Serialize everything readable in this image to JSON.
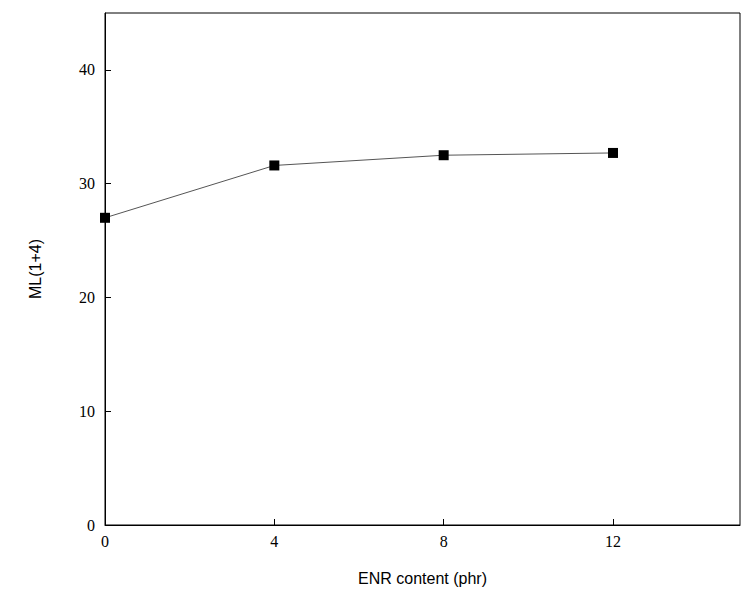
{
  "chart_data": {
    "type": "line",
    "x_label": "ENR content (phr)",
    "y_label": "ML(1+4)",
    "x": [
      0,
      4,
      8,
      12
    ],
    "values": [
      27,
      31.6,
      32.5,
      32.7
    ],
    "color": "#000000",
    "marker": "square",
    "line_style": "solid",
    "xlim": [
      0,
      15
    ],
    "xticks": [
      0,
      4,
      8,
      12
    ],
    "ylim": [
      0,
      45
    ],
    "yticks": [
      0,
      10,
      20,
      30,
      40
    ],
    "grid": false
  }
}
